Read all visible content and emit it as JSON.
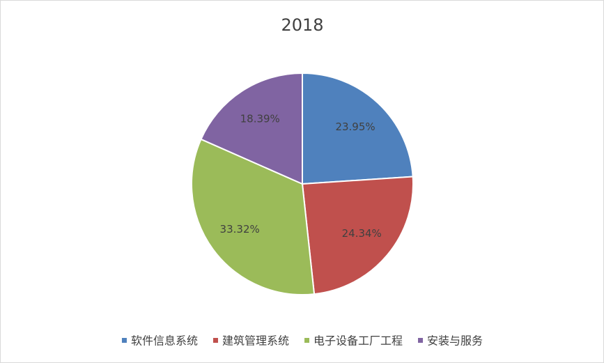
{
  "chart_data": {
    "type": "pie",
    "title": "2018",
    "categories": [
      "软件信息系统",
      "建筑管理系统",
      "电子设备工厂工程",
      "安装与服务"
    ],
    "values": [
      23.95,
      24.34,
      33.32,
      18.39
    ],
    "value_labels": [
      "23.95%",
      "24.34%",
      "33.32%",
      "18.39%"
    ],
    "colors": [
      "#4f81bd",
      "#c0504d",
      "#9bbb59",
      "#8064a2"
    ],
    "legend": "bottom"
  }
}
